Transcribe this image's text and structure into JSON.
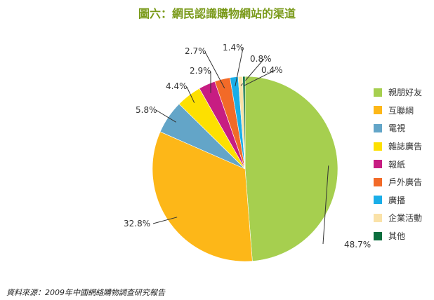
{
  "chart_data": {
    "type": "pie",
    "title": "圖六：網民認識購物網站的渠道",
    "categories": [
      "親朋好友",
      "互聯網",
      "電視",
      "雜誌廣告",
      "報紙",
      "戶外廣告",
      "廣播",
      "企業活動",
      "其他"
    ],
    "values": [
      48.7,
      32.8,
      5.8,
      4.4,
      2.9,
      2.7,
      1.4,
      0.8,
      0.4
    ],
    "value_labels": [
      "48.7%",
      "32.8%",
      "5.8%",
      "4.4%",
      "2.9%",
      "2.7%",
      "1.4%",
      "0.8%",
      "0.4%"
    ],
    "colors": [
      "#a6cf4f",
      "#fdb718",
      "#63a5c8",
      "#fde000",
      "#c71d82",
      "#f26a28",
      "#1aaee8",
      "#fae2a8",
      "#0b6e3e"
    ],
    "legend_position": "right"
  },
  "source": "資料來源：2009年中國網絡購物調查研究報告"
}
